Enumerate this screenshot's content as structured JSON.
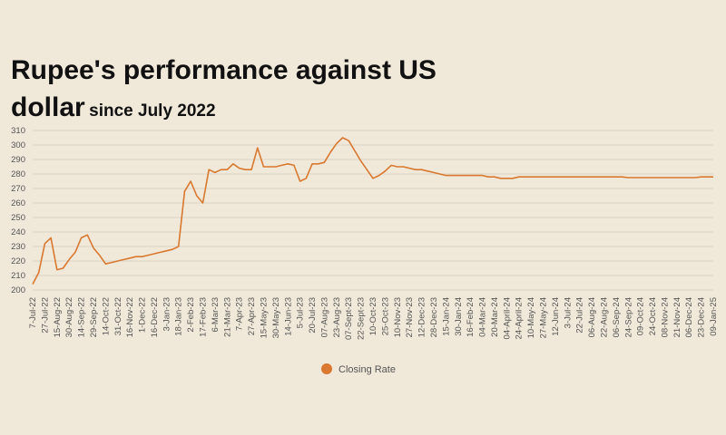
{
  "chart_data": {
    "type": "line",
    "title": "Rupee's performance against US dollar",
    "subtitle": "since July 2022",
    "categories": [
      "7-Jul-22",
      null,
      "27-Jul-22",
      null,
      "15-Aug-22",
      null,
      "30-Aug-22",
      null,
      "14-Sep-22",
      null,
      "29-Sep-22",
      null,
      "14-Oct-22",
      null,
      "31-Oct-22",
      null,
      "16-Nov-22",
      null,
      "1-Dec-22",
      null,
      "16-Dec-22",
      null,
      "3-Jan-23",
      null,
      "18-Jan-23",
      null,
      "2-Feb-23",
      null,
      "17-Feb-23",
      null,
      "6-Mar-23",
      null,
      "21-Mar-23",
      null,
      "7-Apr-23",
      null,
      "27-Apr-23",
      null,
      "15-May-23",
      null,
      "30-May-23",
      null,
      "14-Jun-23",
      null,
      "5-Jul-23",
      null,
      "20-Jul-23",
      null,
      "07-Aug-23",
      null,
      "23-Aug-23",
      null,
      "07-Sept-23",
      null,
      "22-Sept-23",
      null,
      "10-Oct-23",
      null,
      "25-Oct-23",
      null,
      "10-Nov-23",
      null,
      "27-Nov-23",
      null,
      "12-Dec-23",
      null,
      "28-Dec-23",
      null,
      "15-Jan-24",
      null,
      "30-Jan-24",
      null,
      "16-Feb-24",
      null,
      "04-Mar-24",
      null,
      "20-Mar-24",
      null,
      "04-April-24",
      null,
      "24-April-24",
      null,
      "10-May-24",
      null,
      "27-May-24",
      null,
      "12-Jun-24",
      null,
      "3-Jul-24",
      null,
      "22-Jul-24",
      null,
      "06-Aug-24",
      null,
      "22-Aug-24",
      null,
      "06-Sep-24",
      null,
      "24-Sep-24",
      null,
      "09-Oct-24",
      null,
      "24-Oct-24",
      null,
      "08-Nov-24",
      null,
      "21-Nov-24",
      null,
      "06-Dec-24",
      null,
      "23-Dec-24",
      null,
      "09-Jan-25"
    ],
    "series": [
      {
        "name": "Closing Rate",
        "color": "#d9782f",
        "values": [
          204,
          212,
          232,
          236,
          214,
          215,
          221,
          226,
          236,
          238,
          229,
          224,
          218,
          219,
          220,
          221,
          222,
          223,
          223,
          224,
          225,
          226,
          227,
          228,
          230,
          268,
          275,
          265,
          260,
          283,
          281,
          283,
          283,
          287,
          284,
          283,
          283,
          298,
          285,
          285,
          285,
          286,
          287,
          286,
          275,
          277,
          287,
          287,
          288,
          295,
          301,
          305,
          303,
          296,
          289,
          283,
          277,
          279,
          282,
          286,
          285,
          285,
          284,
          283,
          283,
          282,
          281,
          280,
          279,
          279,
          279,
          279,
          279,
          279,
          279,
          278,
          278,
          277,
          277,
          277,
          278,
          278,
          278,
          278,
          278,
          278,
          278,
          278,
          278,
          278,
          278,
          278,
          278,
          278,
          278,
          278,
          278,
          278,
          277.5,
          277.5,
          277.5,
          277.5,
          277.5,
          277.5,
          277.5,
          277.5,
          277.5,
          277.5,
          277.5,
          277.5,
          278,
          278,
          278
        ]
      }
    ],
    "ylim": [
      200,
      310
    ],
    "yticks": [
      200,
      210,
      220,
      230,
      240,
      250,
      260,
      270,
      280,
      290,
      300,
      310
    ],
    "grid": true,
    "legend": "bottom"
  }
}
